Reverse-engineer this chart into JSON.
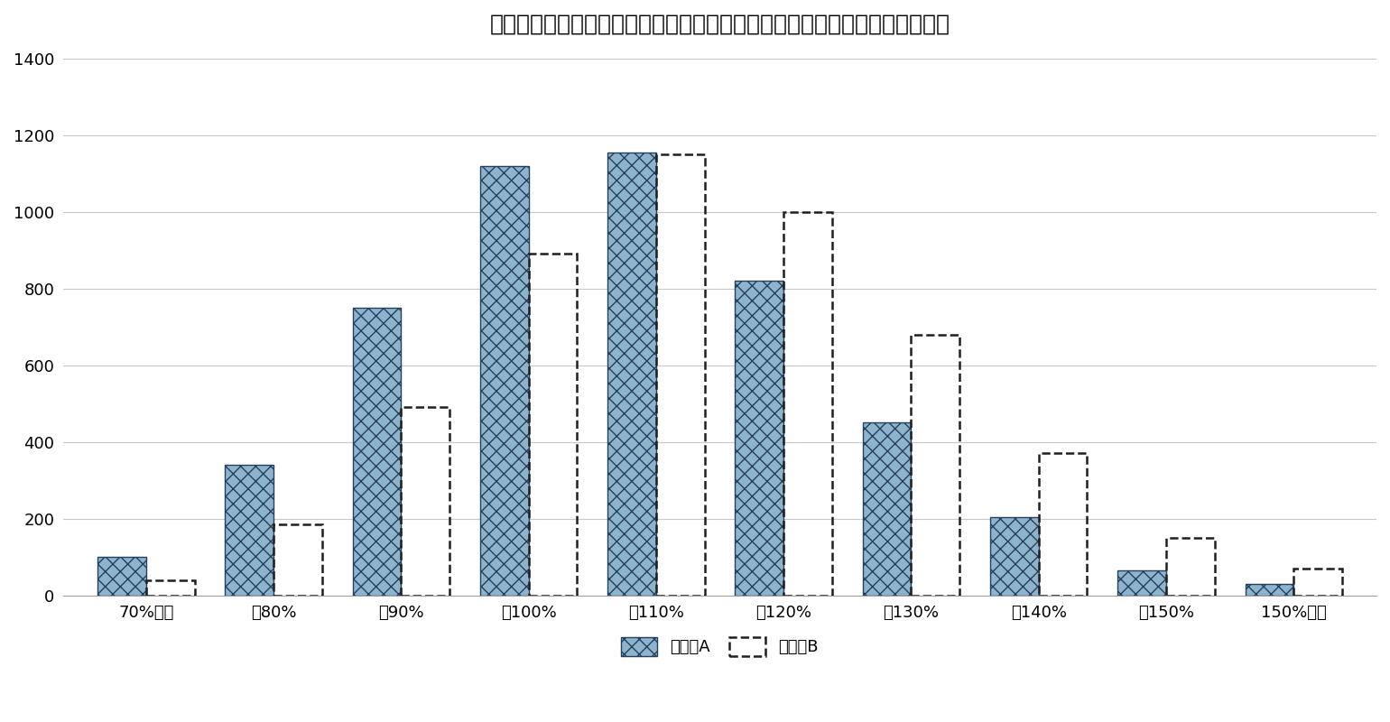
{
  "title": "図表１：モンテカルロ・シミュレーションの結果：積立比率のヒストグラム",
  "categories": [
    "70%未満",
    "～80%",
    "～90%",
    "～100%",
    "～110%",
    "～120%",
    "～130%",
    "～140%",
    "～150%",
    "150%以上"
  ],
  "case_a": [
    100,
    340,
    750,
    1120,
    1155,
    820,
    450,
    205,
    65,
    30
  ],
  "case_b": [
    40,
    185,
    490,
    890,
    1150,
    1000,
    680,
    370,
    150,
    70
  ],
  "bar_color_a": "#8EB4CB",
  "bar_hatch_a": "xx",
  "bar_edge_color_a": "#243F5F",
  "bar_edge_color_b": "#1F1F1F",
  "ylim": [
    0,
    1400
  ],
  "yticks": [
    0,
    200,
    400,
    600,
    800,
    1000,
    1200,
    1400
  ],
  "legend_a": "ケースA",
  "legend_b": "ケースB",
  "title_fontsize": 18,
  "tick_fontsize": 13,
  "legend_fontsize": 13,
  "background_color": "#FFFFFF",
  "grid_color": "#C8C8C8",
  "bar_width": 0.38,
  "bar_gap": 0.0
}
